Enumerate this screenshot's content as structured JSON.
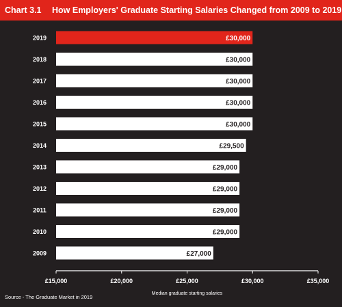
{
  "header": {
    "chart_label": "Chart 3.1",
    "title": "How Employers' Graduate Starting Salaries Changed from 2009 to 2019"
  },
  "colors": {
    "background": "#231f20",
    "header": "#e1251b",
    "highlight_bar": "#e1251b",
    "bar": "#ffffff",
    "bar_label_default": "#231f20",
    "bar_label_highlight": "#ffffff"
  },
  "chart_data": {
    "type": "bar",
    "orientation": "horizontal",
    "title": "How Employers' Graduate Starting Salaries Changed from 2009 to 2019",
    "categories": [
      "2019",
      "2018",
      "2017",
      "2016",
      "2015",
      "2014",
      "2013",
      "2012",
      "2011",
      "2010",
      "2009"
    ],
    "values": [
      30000,
      30000,
      30000,
      30000,
      30000,
      29500,
      29000,
      29000,
      29000,
      29000,
      27000
    ],
    "value_labels": [
      "£30,000",
      "£30,000",
      "£30,000",
      "£30,000",
      "£30,000",
      "£29,500",
      "£29,000",
      "£29,000",
      "£29,000",
      "£29,000",
      "£27,000"
    ],
    "highlight_category": "2019",
    "xlabel": "Median graduate starting salaries",
    "xlim": [
      15000,
      35000
    ],
    "xticks": [
      15000,
      20000,
      25000,
      30000,
      35000
    ],
    "xtick_labels": [
      "£15,000",
      "£20,000",
      "£25,000",
      "£30,000",
      "£35,000"
    ],
    "grid": false,
    "source": "Source - The Graduate Market in 2019"
  }
}
